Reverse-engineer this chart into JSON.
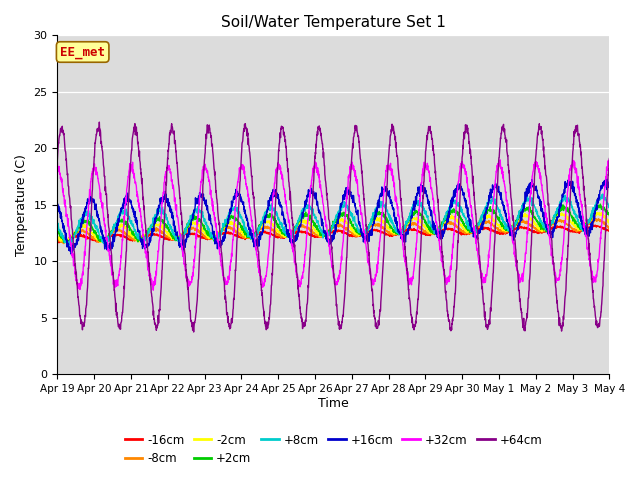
{
  "title": "Soil/Water Temperature Set 1",
  "xlabel": "Time",
  "ylabel": "Temperature (C)",
  "ylim": [
    0,
    30
  ],
  "yticks": [
    0,
    5,
    10,
    15,
    20,
    25,
    30
  ],
  "x_tick_labels": [
    "Apr 19",
    "Apr 20",
    "Apr 21",
    "Apr 22",
    "Apr 23",
    "Apr 24",
    "Apr 25",
    "Apr 26",
    "Apr 27",
    "Apr 28",
    "Apr 29",
    "Apr 30",
    "May 1",
    "May 2",
    "May 3",
    "May 4"
  ],
  "annotation_text": "EE_met",
  "annotation_color": "#cc0000",
  "annotation_bg": "#ffff99",
  "bg_color": "#dcdcdc",
  "series": [
    {
      "label": "-16cm",
      "color": "#ff0000",
      "base": 12.0,
      "amplitude": 0.25,
      "phase_shift": 0.0,
      "trend": 0.06
    },
    {
      "label": "-8cm",
      "color": "#ff8800",
      "base": 12.2,
      "amplitude": 0.45,
      "phase_shift": 0.05,
      "trend": 0.07
    },
    {
      "label": "-2cm",
      "color": "#ffff00",
      "base": 12.4,
      "amplitude": 0.65,
      "phase_shift": 0.1,
      "trend": 0.08
    },
    {
      "label": "+2cm",
      "color": "#00cc00",
      "base": 12.6,
      "amplitude": 0.9,
      "phase_shift": 0.15,
      "trend": 0.09
    },
    {
      "label": "+8cm",
      "color": "#00cccc",
      "base": 12.9,
      "amplitude": 1.3,
      "phase_shift": 0.2,
      "trend": 0.1
    },
    {
      "label": "+16cm",
      "color": "#0000cc",
      "base": 13.2,
      "amplitude": 2.2,
      "phase_shift": 0.3,
      "trend": 0.11
    },
    {
      "label": "+32cm",
      "color": "#ff00ff",
      "base": 13.0,
      "amplitude": 5.0,
      "phase_shift": 0.45,
      "trend": 0.04
    },
    {
      "label": "+64cm",
      "color": "#880088",
      "base": 13.0,
      "amplitude": 8.5,
      "phase_shift": 0.55,
      "trend": 0.0
    }
  ]
}
